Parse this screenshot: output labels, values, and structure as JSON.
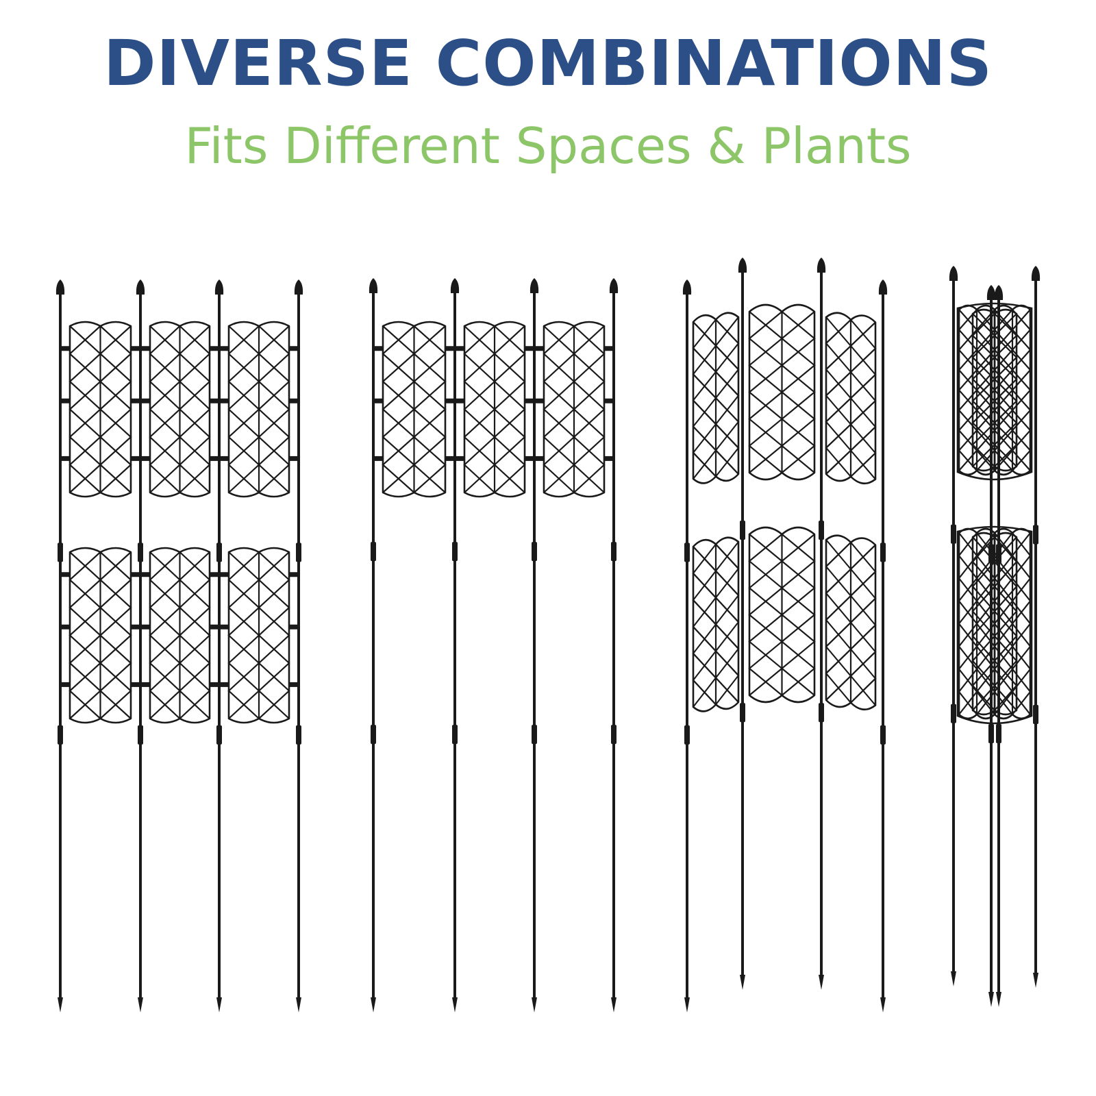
{
  "header": {
    "title": "DIVERSE COMBINATIONS",
    "subtitle": "Fits Different Spaces & Plants"
  },
  "colors": {
    "title": "#2b4f86",
    "subtitle": "#8dc668",
    "frame": "#1a1a1a",
    "background": "#ffffff"
  },
  "configurations": [
    {
      "name": "flat-two-tier",
      "stakes": 4,
      "panel_rows": 2,
      "panels_per_row": 3
    },
    {
      "name": "flat-single-tier",
      "stakes": 4,
      "panel_rows": 1,
      "panels_per_row": 3
    },
    {
      "name": "curved-two-tier",
      "stakes": 4,
      "panel_rows": 2,
      "panels_per_row": 3
    },
    {
      "name": "triangular-tower",
      "stakes": 4,
      "panel_rows": 2,
      "panels_per_row": 3
    }
  ]
}
